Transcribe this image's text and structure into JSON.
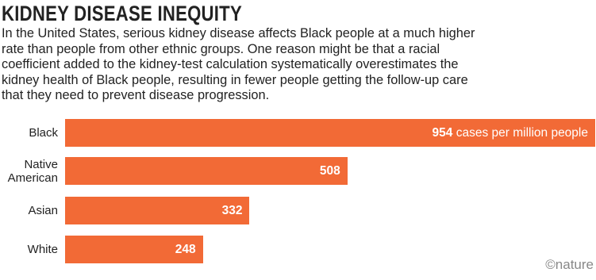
{
  "chart_data": {
    "type": "bar",
    "orientation": "horizontal",
    "title": "KIDNEY DISEASE INEQUITY",
    "subtitle": [
      "In the United States, serious kidney disease affects Black people at a much higher",
      "rate than people from other ethnic groups. One reason might be that a racial",
      "coefficient added to the kidney-test calculation systematically overestimates the",
      "kidney health of Black people, resulting in fewer people getting the follow-up care",
      "that they need to prevent disease progression."
    ],
    "categories": [
      "Black",
      "Native American",
      "Asian",
      "White"
    ],
    "values": [
      954,
      508,
      332,
      248
    ],
    "unit_label": "cases per million people",
    "color": "#f26a36",
    "credit": "©nature"
  }
}
